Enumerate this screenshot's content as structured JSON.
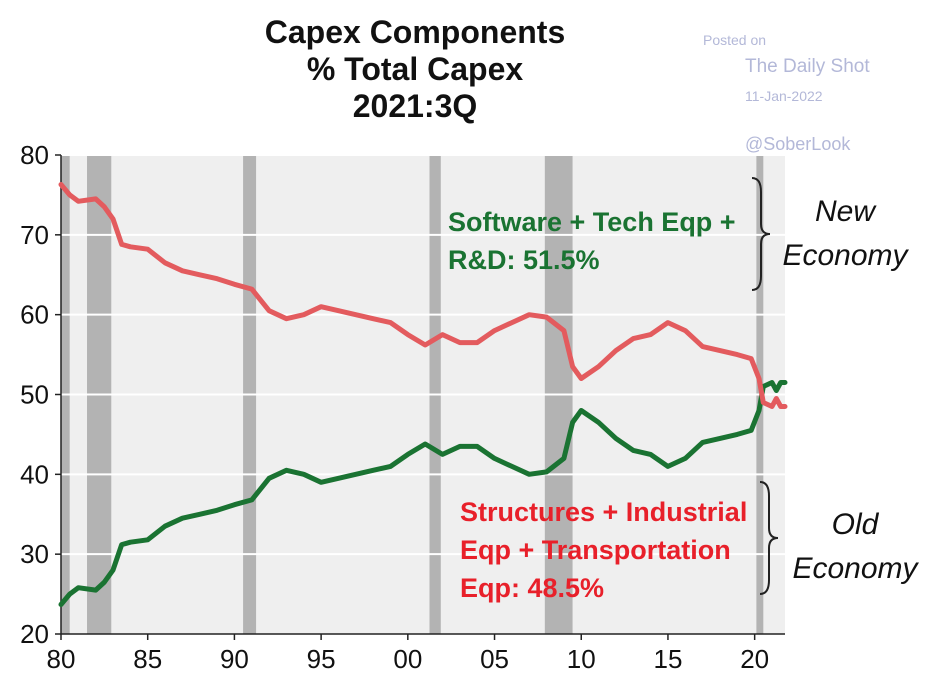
{
  "chart_data": {
    "type": "line",
    "title": [
      "Capex Components",
      "% Total Capex",
      "2021:3Q"
    ],
    "xlabel": "",
    "ylabel": "",
    "xlim": [
      1980,
      2021.75
    ],
    "ylim": [
      20,
      80
    ],
    "x_ticks": [
      1980,
      1985,
      1990,
      1995,
      2000,
      2005,
      2010,
      2015,
      2020
    ],
    "x_tick_labels": [
      "80",
      "85",
      "90",
      "95",
      "00",
      "05",
      "10",
      "15",
      "20"
    ],
    "y_ticks": [
      20,
      30,
      40,
      50,
      60,
      70,
      80
    ],
    "y_tick_labels": [
      "20",
      "30",
      "40",
      "50",
      "60",
      "70",
      "80"
    ],
    "grid": "horizontal",
    "recessions": [
      [
        1980.0,
        1980.5
      ],
      [
        1981.5,
        1982.9
      ],
      [
        1990.5,
        1991.25
      ],
      [
        2001.25,
        2001.9
      ],
      [
        2007.9,
        2009.5
      ],
      [
        2020.1,
        2020.5
      ]
    ],
    "series": [
      {
        "name": "Software + Tech Eqp + R&D",
        "color": "#1a7332",
        "x": [
          1980,
          1980.5,
          1981,
          1982,
          1982.5,
          1983,
          1983.5,
          1984,
          1985,
          1986,
          1987,
          1988,
          1989,
          1990,
          1991,
          1992,
          1993,
          1994,
          1995,
          1996,
          1997,
          1998,
          1999,
          2000,
          2001,
          2002,
          2003,
          2004,
          2005,
          2006,
          2007,
          2008,
          2009,
          2009.5,
          2010,
          2011,
          2012,
          2013,
          2014,
          2015,
          2016,
          2017,
          2018,
          2019,
          2019.8,
          2020.25,
          2020.5,
          2021,
          2021.25,
          2021.5,
          2021.75
        ],
        "values": [
          23.7,
          25.0,
          25.8,
          25.5,
          26.5,
          28.0,
          31.2,
          31.5,
          31.8,
          33.5,
          34.5,
          35.0,
          35.5,
          36.2,
          36.8,
          39.5,
          40.5,
          40.0,
          39.0,
          39.5,
          40.0,
          40.5,
          41.0,
          42.5,
          43.8,
          42.5,
          43.5,
          43.5,
          42.0,
          41.0,
          40.0,
          40.3,
          42.0,
          46.5,
          48.0,
          46.5,
          44.5,
          43.0,
          42.5,
          41.0,
          42.0,
          44.0,
          44.5,
          45.0,
          45.5,
          48.0,
          51.0,
          51.5,
          50.5,
          51.5,
          51.5
        ]
      },
      {
        "name": "Structures + Industrial Eqp + Transportation Eqp",
        "color": "#e35b5e",
        "x": [
          1980,
          1980.5,
          1981,
          1982,
          1982.5,
          1983,
          1983.5,
          1984,
          1985,
          1986,
          1987,
          1988,
          1989,
          1990,
          1991,
          1992,
          1993,
          1994,
          1995,
          1996,
          1997,
          1998,
          1999,
          2000,
          2001,
          2002,
          2003,
          2004,
          2005,
          2006,
          2007,
          2008,
          2009,
          2009.5,
          2010,
          2011,
          2012,
          2013,
          2014,
          2015,
          2016,
          2017,
          2018,
          2019,
          2019.8,
          2020.25,
          2020.5,
          2021,
          2021.25,
          2021.5,
          2021.75
        ],
        "values": [
          76.3,
          75.0,
          74.2,
          74.5,
          73.5,
          72.0,
          68.8,
          68.5,
          68.2,
          66.5,
          65.5,
          65.0,
          64.5,
          63.8,
          63.2,
          60.5,
          59.5,
          60.0,
          61.0,
          60.5,
          60.0,
          59.5,
          59.0,
          57.5,
          56.2,
          57.5,
          56.5,
          56.5,
          58.0,
          59.0,
          60.0,
          59.7,
          58.0,
          53.5,
          52.0,
          53.5,
          55.5,
          57.0,
          57.5,
          59.0,
          58.0,
          56.0,
          55.5,
          55.0,
          54.5,
          52.0,
          49.0,
          48.5,
          49.5,
          48.5,
          48.5
        ]
      }
    ],
    "annotations": {
      "green": [
        "Software + Tech Eqp +",
        "R&D: 51.5%"
      ],
      "red": [
        "Structures + Industrial",
        "Eqp + Transportation",
        "Eqp: 48.5%"
      ],
      "new_economy": [
        "New",
        "Economy"
      ],
      "old_economy": [
        "Old",
        "Economy"
      ]
    },
    "credits": {
      "posted": "Posted on",
      "site": "The Daily Shot",
      "date": "11-Jan-2022",
      "handle": "@SoberLook"
    }
  }
}
